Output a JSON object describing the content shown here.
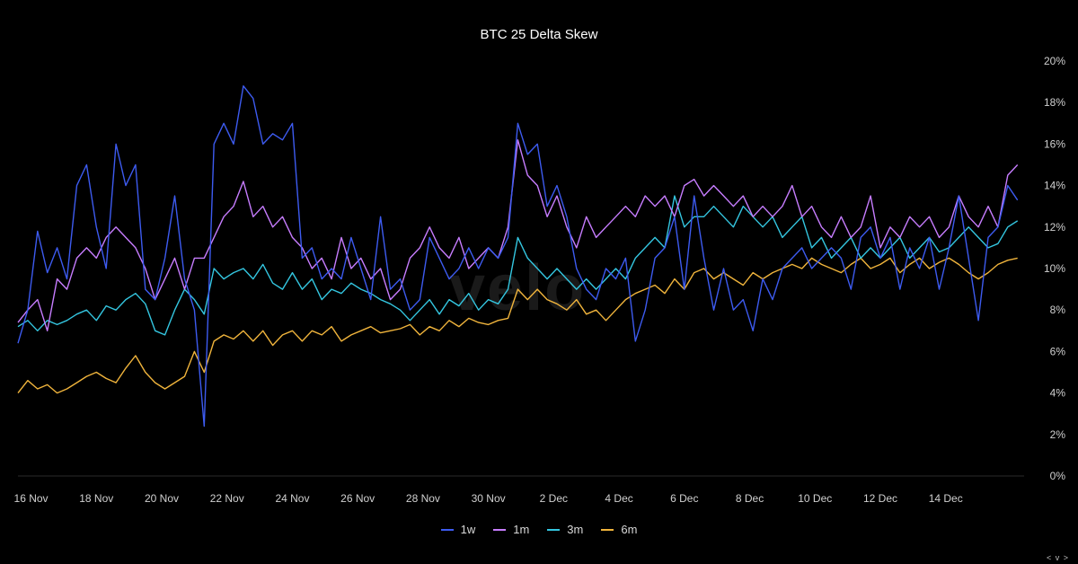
{
  "chart_data": {
    "type": "line",
    "title": "BTC 25 Delta Skew",
    "x_ticks": [
      "16 Nov",
      "18 Nov",
      "20 Nov",
      "22 Nov",
      "24 Nov",
      "26 Nov",
      "28 Nov",
      "30 Nov",
      "2 Dec",
      "4 Dec",
      "6 Dec",
      "8 Dec",
      "10 Dec",
      "12 Dec",
      "14 Dec"
    ],
    "y_ticks": [
      "0%",
      "2%",
      "4%",
      "6%",
      "8%",
      "10%",
      "12%",
      "14%",
      "16%",
      "18%",
      "20%"
    ],
    "ylim": [
      0,
      20
    ],
    "x_range_days": [
      15.6,
      16.2
    ],
    "legend_position": "bottom-center",
    "grid": false,
    "series": [
      {
        "name": "1w",
        "color": "#3d5bf0",
        "x": [
          15.6,
          15.9,
          16.2,
          16.5,
          16.8,
          17.1,
          17.4,
          17.7,
          18.0,
          18.3,
          18.6,
          18.9,
          19.2,
          19.5,
          19.8,
          20.1,
          20.4,
          20.7,
          21.0,
          21.3,
          21.6,
          21.9,
          22.2,
          22.5,
          22.8,
          23.1,
          23.4,
          23.7,
          24.0,
          24.3,
          24.6,
          24.9,
          25.2,
          25.5,
          25.8,
          26.1,
          26.4,
          26.7,
          27.0,
          27.3,
          27.6,
          27.9,
          28.2,
          28.5,
          28.8,
          29.1,
          29.4,
          29.7,
          30.0,
          30.3,
          30.6,
          30.9,
          31.2,
          31.5,
          31.8,
          32.1,
          32.4,
          32.7,
          33.0,
          33.3,
          33.6,
          33.9,
          34.2,
          34.5,
          34.8,
          35.1,
          35.4,
          35.7,
          36.0,
          36.3,
          36.6,
          36.9,
          37.2,
          37.5,
          37.8,
          38.1,
          38.4,
          38.7,
          39.0,
          39.3,
          39.6,
          39.9,
          40.2,
          40.5,
          40.8,
          41.1,
          41.4,
          41.7,
          42.0,
          42.3,
          42.6,
          42.9,
          43.2,
          43.5,
          43.8,
          44.1,
          44.4,
          44.7,
          45.0,
          45.3,
          45.6,
          45.9,
          46.2
        ],
        "values": [
          6.4,
          8.0,
          11.8,
          9.8,
          11.0,
          9.5,
          14.0,
          15.0,
          12.0,
          10.0,
          16.0,
          14.0,
          15.0,
          9.0,
          8.5,
          10.5,
          13.5,
          9.5,
          8.0,
          2.4,
          16.0,
          17.0,
          16.0,
          18.8,
          18.2,
          16.0,
          16.5,
          16.2,
          17.0,
          10.5,
          11.0,
          9.5,
          10.0,
          9.5,
          11.5,
          10.0,
          8.5,
          12.5,
          9.0,
          9.5,
          8.0,
          8.5,
          11.5,
          10.5,
          9.5,
          10.0,
          11.0,
          10.0,
          11.0,
          10.5,
          11.5,
          17.0,
          15.5,
          16.0,
          13.0,
          14.0,
          12.5,
          10.0,
          9.0,
          8.5,
          10.0,
          9.5,
          10.5,
          6.5,
          8.0,
          10.5,
          11.0,
          12.5,
          9.0,
          13.5,
          10.5,
          8.0,
          10.0,
          8.0,
          8.5,
          7.0,
          9.5,
          8.5,
          10.0,
          10.5,
          11.0,
          10.0,
          10.5,
          11.0,
          10.5,
          9.0,
          11.5,
          12.0,
          10.5,
          11.5,
          9.0,
          11.0,
          10.0,
          11.5,
          9.0,
          11.0,
          13.5,
          10.5,
          7.5,
          11.5,
          12.0,
          14.0,
          13.3
        ]
      },
      {
        "name": "1m",
        "color": "#c77dff",
        "x": [
          15.6,
          15.9,
          16.2,
          16.5,
          16.8,
          17.1,
          17.4,
          17.7,
          18.0,
          18.3,
          18.6,
          18.9,
          19.2,
          19.5,
          19.8,
          20.1,
          20.4,
          20.7,
          21.0,
          21.3,
          21.6,
          21.9,
          22.2,
          22.5,
          22.8,
          23.1,
          23.4,
          23.7,
          24.0,
          24.3,
          24.6,
          24.9,
          25.2,
          25.5,
          25.8,
          26.1,
          26.4,
          26.7,
          27.0,
          27.3,
          27.6,
          27.9,
          28.2,
          28.5,
          28.8,
          29.1,
          29.4,
          29.7,
          30.0,
          30.3,
          30.6,
          30.9,
          31.2,
          31.5,
          31.8,
          32.1,
          32.4,
          32.7,
          33.0,
          33.3,
          33.6,
          33.9,
          34.2,
          34.5,
          34.8,
          35.1,
          35.4,
          35.7,
          36.0,
          36.3,
          36.6,
          36.9,
          37.2,
          37.5,
          37.8,
          38.1,
          38.4,
          38.7,
          39.0,
          39.3,
          39.6,
          39.9,
          40.2,
          40.5,
          40.8,
          41.1,
          41.4,
          41.7,
          42.0,
          42.3,
          42.6,
          42.9,
          43.2,
          43.5,
          43.8,
          44.1,
          44.4,
          44.7,
          45.0,
          45.3,
          45.6,
          45.9,
          46.2
        ],
        "values": [
          7.4,
          8.0,
          8.5,
          7.0,
          9.5,
          9.0,
          10.5,
          11.0,
          10.5,
          11.5,
          12.0,
          11.5,
          11.0,
          10.0,
          8.5,
          9.5,
          10.5,
          9.0,
          10.5,
          10.5,
          11.5,
          12.5,
          13.0,
          14.2,
          12.5,
          13.0,
          12.0,
          12.5,
          11.5,
          11.0,
          10.0,
          10.5,
          9.5,
          11.5,
          10.0,
          10.5,
          9.5,
          10.0,
          8.5,
          9.0,
          10.5,
          11.0,
          12.0,
          11.0,
          10.5,
          11.5,
          10.0,
          10.5,
          11.0,
          10.5,
          12.0,
          16.2,
          14.5,
          14.0,
          12.5,
          13.5,
          12.0,
          11.0,
          12.5,
          11.5,
          12.0,
          12.5,
          13.0,
          12.5,
          13.5,
          13.0,
          13.5,
          12.5,
          14.0,
          14.3,
          13.5,
          14.0,
          13.5,
          13.0,
          13.5,
          12.5,
          13.0,
          12.5,
          13.0,
          14.0,
          12.5,
          13.0,
          12.0,
          11.5,
          12.5,
          11.5,
          12.0,
          13.5,
          11.0,
          12.0,
          11.5,
          12.5,
          12.0,
          12.5,
          11.5,
          12.0,
          13.5,
          12.5,
          12.0,
          13.0,
          12.0,
          14.5,
          15.0
        ]
      },
      {
        "name": "3m",
        "color": "#34c6e0",
        "x": [
          15.6,
          15.9,
          16.2,
          16.5,
          16.8,
          17.1,
          17.4,
          17.7,
          18.0,
          18.3,
          18.6,
          18.9,
          19.2,
          19.5,
          19.8,
          20.1,
          20.4,
          20.7,
          21.0,
          21.3,
          21.6,
          21.9,
          22.2,
          22.5,
          22.8,
          23.1,
          23.4,
          23.7,
          24.0,
          24.3,
          24.6,
          24.9,
          25.2,
          25.5,
          25.8,
          26.1,
          26.4,
          26.7,
          27.0,
          27.3,
          27.6,
          27.9,
          28.2,
          28.5,
          28.8,
          29.1,
          29.4,
          29.7,
          30.0,
          30.3,
          30.6,
          30.9,
          31.2,
          31.5,
          31.8,
          32.1,
          32.4,
          32.7,
          33.0,
          33.3,
          33.6,
          33.9,
          34.2,
          34.5,
          34.8,
          35.1,
          35.4,
          35.7,
          36.0,
          36.3,
          36.6,
          36.9,
          37.2,
          37.5,
          37.8,
          38.1,
          38.4,
          38.7,
          39.0,
          39.3,
          39.6,
          39.9,
          40.2,
          40.5,
          40.8,
          41.1,
          41.4,
          41.7,
          42.0,
          42.3,
          42.6,
          42.9,
          43.2,
          43.5,
          43.8,
          44.1,
          44.4,
          44.7,
          45.0,
          45.3,
          45.6,
          45.9,
          46.2
        ],
        "values": [
          7.2,
          7.5,
          7.0,
          7.5,
          7.3,
          7.5,
          7.8,
          8.0,
          7.5,
          8.2,
          8.0,
          8.5,
          8.8,
          8.3,
          7.0,
          6.8,
          8.0,
          9.0,
          8.5,
          7.8,
          10.0,
          9.5,
          9.8,
          10.0,
          9.5,
          10.2,
          9.3,
          9.0,
          9.8,
          9.0,
          9.5,
          8.5,
          9.0,
          8.8,
          9.3,
          9.0,
          8.8,
          8.5,
          8.3,
          8.0,
          7.5,
          8.0,
          8.5,
          7.8,
          8.5,
          8.2,
          8.8,
          8.0,
          8.5,
          8.3,
          9.0,
          11.5,
          10.5,
          10.0,
          9.5,
          10.0,
          9.5,
          9.0,
          9.5,
          9.0,
          9.5,
          10.0,
          9.5,
          10.5,
          11.0,
          11.5,
          11.0,
          13.5,
          12.0,
          12.5,
          12.5,
          13.0,
          12.5,
          12.0,
          13.0,
          12.5,
          12.0,
          12.5,
          11.5,
          12.0,
          12.5,
          11.0,
          11.5,
          10.5,
          11.0,
          11.5,
          10.5,
          11.0,
          10.5,
          11.0,
          11.5,
          10.5,
          11.0,
          11.5,
          10.8,
          11.0,
          11.5,
          12.0,
          11.5,
          11.0,
          11.2,
          12.0,
          12.3
        ]
      },
      {
        "name": "6m",
        "color": "#f0b43c",
        "x": [
          15.6,
          15.9,
          16.2,
          16.5,
          16.8,
          17.1,
          17.4,
          17.7,
          18.0,
          18.3,
          18.6,
          18.9,
          19.2,
          19.5,
          19.8,
          20.1,
          20.4,
          20.7,
          21.0,
          21.3,
          21.6,
          21.9,
          22.2,
          22.5,
          22.8,
          23.1,
          23.4,
          23.7,
          24.0,
          24.3,
          24.6,
          24.9,
          25.2,
          25.5,
          25.8,
          26.1,
          26.4,
          26.7,
          27.0,
          27.3,
          27.6,
          27.9,
          28.2,
          28.5,
          28.8,
          29.1,
          29.4,
          29.7,
          30.0,
          30.3,
          30.6,
          30.9,
          31.2,
          31.5,
          31.8,
          32.1,
          32.4,
          32.7,
          33.0,
          33.3,
          33.6,
          33.9,
          34.2,
          34.5,
          34.8,
          35.1,
          35.4,
          35.7,
          36.0,
          36.3,
          36.6,
          36.9,
          37.2,
          37.5,
          37.8,
          38.1,
          38.4,
          38.7,
          39.0,
          39.3,
          39.6,
          39.9,
          40.2,
          40.5,
          40.8,
          41.1,
          41.4,
          41.7,
          42.0,
          42.3,
          42.6,
          42.9,
          43.2,
          43.5,
          43.8,
          44.1,
          44.4,
          44.7,
          45.0,
          45.3,
          45.6,
          45.9,
          46.2
        ],
        "values": [
          4.0,
          4.6,
          4.2,
          4.4,
          4.0,
          4.2,
          4.5,
          4.8,
          5.0,
          4.7,
          4.5,
          5.2,
          5.8,
          5.0,
          4.5,
          4.2,
          4.5,
          4.8,
          6.0,
          5.0,
          6.5,
          6.8,
          6.6,
          7.0,
          6.5,
          7.0,
          6.3,
          6.8,
          7.0,
          6.5,
          7.0,
          6.8,
          7.2,
          6.5,
          6.8,
          7.0,
          7.2,
          6.9,
          7.0,
          7.1,
          7.3,
          6.8,
          7.2,
          7.0,
          7.5,
          7.2,
          7.6,
          7.4,
          7.3,
          7.5,
          7.6,
          9.0,
          8.5,
          9.0,
          8.5,
          8.3,
          8.0,
          8.5,
          7.8,
          8.0,
          7.5,
          8.0,
          8.5,
          8.8,
          9.0,
          9.2,
          8.8,
          9.5,
          9.0,
          9.8,
          10.0,
          9.5,
          9.8,
          9.5,
          9.2,
          9.8,
          9.5,
          9.8,
          10.0,
          10.2,
          10.0,
          10.5,
          10.2,
          10.0,
          9.8,
          10.2,
          10.5,
          10.0,
          10.2,
          10.5,
          9.8,
          10.2,
          10.5,
          10.0,
          10.3,
          10.5,
          10.2,
          9.8,
          9.5,
          9.8,
          10.2,
          10.4,
          10.5
        ]
      }
    ]
  },
  "watermark": "velo",
  "nav_arrows": "< v >"
}
